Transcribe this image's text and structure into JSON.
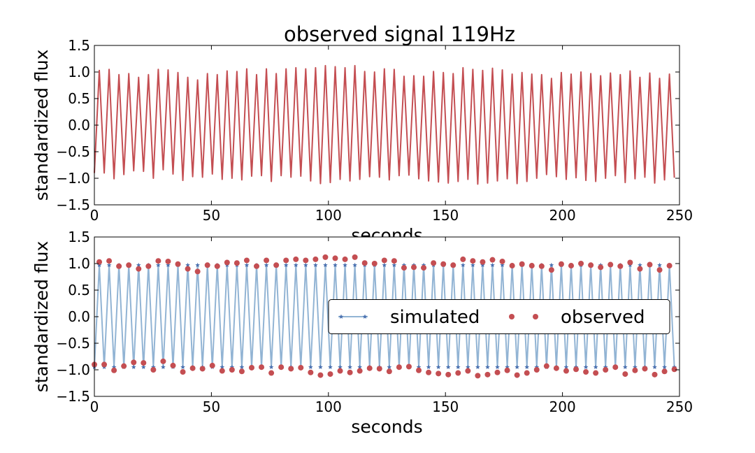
{
  "chart_data": [
    {
      "type": "line",
      "title": "observed signal 119Hz",
      "xlabel": "seconds",
      "ylabel": "standardized flux",
      "xlim": [
        0,
        250
      ],
      "xticks": [
        0,
        50,
        100,
        150,
        200,
        250
      ],
      "ylim": [
        -1.5,
        1.5
      ],
      "yticks": [
        {
          "value": -1.5,
          "label": "−1.5"
        },
        {
          "value": -1.0,
          "label": "−1.0"
        },
        {
          "value": -0.5,
          "label": "−0.5"
        },
        {
          "value": 0,
          "label": "0.0"
        },
        0.5,
        {
          "value": 1.0,
          "label": "1.0"
        },
        1.5
      ],
      "x": [
        0,
        2.1,
        4.2,
        6.3,
        8.4,
        10.5,
        12.6,
        14.7,
        16.8,
        18.9,
        21,
        23.1,
        25.2,
        27.3,
        29.4,
        31.5,
        33.6,
        35.7,
        37.8,
        39.9,
        42,
        44.1,
        46.2,
        48.3,
        50.4,
        52.5,
        54.6,
        56.7,
        58.8,
        60.9,
        63,
        65.1,
        67.2,
        69.3,
        71.4,
        73.5,
        75.6,
        77.7,
        79.8,
        81.9,
        84,
        86.1,
        88.2,
        90.3,
        92.4,
        94.5,
        96.6,
        98.7,
        100.8,
        102.9,
        105,
        107.1,
        109.2,
        111.3,
        113.4,
        115.5,
        117.6,
        119.7,
        121.8,
        123.9,
        126,
        128.1,
        130.2,
        132.3,
        134.4,
        136.5,
        138.6,
        140.7,
        142.8,
        144.9,
        147,
        149.1,
        151.2,
        153.3,
        155.4,
        157.5,
        159.6,
        161.7,
        163.8,
        165.9,
        168,
        170.1,
        172.2,
        174.3,
        176.4,
        178.5,
        180.6,
        182.7,
        184.8,
        186.9,
        189,
        191.1,
        193.2,
        195.3,
        197.4,
        199.5,
        201.6,
        203.7,
        205.8,
        207.9,
        210,
        212.1,
        214.2,
        216.3,
        218.4,
        220.5,
        222.6,
        224.7,
        226.8,
        228.9,
        231,
        233.1,
        235.2,
        237.3,
        239.4,
        241.5,
        243.6,
        245.7,
        247.8
      ],
      "series": [
        {
          "color": "#c44e52",
          "line": true,
          "marker": "none",
          "values": [
            -0.9,
            1.03,
            -0.9,
            1.05,
            -1.01,
            0.95,
            -0.93,
            0.97,
            -0.86,
            0.9,
            -0.87,
            0.95,
            -1.0,
            1.05,
            -0.84,
            1.04,
            -0.92,
            0.99,
            -1.04,
            0.9,
            -0.97,
            0.85,
            -0.98,
            0.97,
            -0.92,
            0.95,
            -1.02,
            1.02,
            -1.0,
            1.01,
            -1.03,
            1.06,
            -0.96,
            0.95,
            -0.95,
            1.06,
            -1.06,
            0.97,
            -0.95,
            1.06,
            -0.98,
            1.08,
            -0.96,
            1.06,
            -1.05,
            1.08,
            -1.1,
            1.12,
            -1.08,
            1.1,
            -1.02,
            1.08,
            -1.05,
            1.12,
            -1.02,
            1.01,
            -0.97,
            1.0,
            -0.98,
            1.06,
            -1.03,
            1.05,
            -0.95,
            0.92,
            -0.94,
            0.93,
            -1.01,
            0.92,
            -1.05,
            1.01,
            -1.07,
            0.99,
            -1.09,
            0.97,
            -1.06,
            1.08,
            -1.02,
            1.05,
            -1.11,
            1.03,
            -1.09,
            1.07,
            -1.05,
            1.04,
            -1.01,
            0.96,
            -1.1,
            0.99,
            -1.06,
            0.96,
            -1.0,
            0.95,
            -0.93,
            0.88,
            -0.97,
            0.99,
            -1.02,
            0.96,
            -0.99,
            1.0,
            -1.04,
            0.97,
            -1.06,
            0.93,
            -1.0,
            0.98,
            -0.95,
            0.95,
            -1.08,
            1.02,
            -1.01,
            0.9,
            -0.98,
            0.98,
            -1.09,
            0.88,
            -1.03,
            0.96,
            -0.99
          ]
        }
      ]
    },
    {
      "type": "line",
      "xlabel": "seconds",
      "ylabel": "standardized flux",
      "xlim": [
        0,
        250
      ],
      "xticks": [
        0,
        50,
        100,
        150,
        200,
        250
      ],
      "ylim": [
        -1.5,
        1.5
      ],
      "yticks": [
        {
          "value": -1.5,
          "label": "−1.5"
        },
        {
          "value": -1.0,
          "label": "−1.0"
        },
        {
          "value": -0.5,
          "label": "−0.5"
        },
        {
          "value": 0,
          "label": "0.0"
        },
        0.5,
        {
          "value": 1.0,
          "label": "1.0"
        },
        1.5
      ],
      "legend": "center right",
      "x": [
        0,
        2.1,
        4.2,
        6.3,
        8.4,
        10.5,
        12.6,
        14.7,
        16.8,
        18.9,
        21,
        23.1,
        25.2,
        27.3,
        29.4,
        31.5,
        33.6,
        35.7,
        37.8,
        39.9,
        42,
        44.1,
        46.2,
        48.3,
        50.4,
        52.5,
        54.6,
        56.7,
        58.8,
        60.9,
        63,
        65.1,
        67.2,
        69.3,
        71.4,
        73.5,
        75.6,
        77.7,
        79.8,
        81.9,
        84,
        86.1,
        88.2,
        90.3,
        92.4,
        94.5,
        96.6,
        98.7,
        100.8,
        102.9,
        105,
        107.1,
        109.2,
        111.3,
        113.4,
        115.5,
        117.6,
        119.7,
        121.8,
        123.9,
        126,
        128.1,
        130.2,
        132.3,
        134.4,
        136.5,
        138.6,
        140.7,
        142.8,
        144.9,
        147,
        149.1,
        151.2,
        153.3,
        155.4,
        157.5,
        159.6,
        161.7,
        163.8,
        165.9,
        168,
        170.1,
        172.2,
        174.3,
        176.4,
        178.5,
        180.6,
        182.7,
        184.8,
        186.9,
        189,
        191.1,
        193.2,
        195.3,
        197.4,
        199.5,
        201.6,
        203.7,
        205.8,
        207.9,
        210,
        212.1,
        214.2,
        216.3,
        218.4,
        220.5,
        222.6,
        224.7,
        226.8,
        228.9,
        231,
        233.1,
        235.2,
        237.3,
        239.4,
        241.5,
        243.6,
        245.7,
        247.8
      ],
      "series": [
        {
          "name": "simulated",
          "color": "#92b4d4",
          "marker_color": "#4c72b0",
          "line": true,
          "marker": "star",
          "values": [
            -0.95,
            0.97,
            -0.95,
            0.97,
            -0.95,
            0.97,
            -0.95,
            0.97,
            -0.95,
            0.97,
            -0.95,
            0.97,
            -0.95,
            0.97,
            -0.95,
            0.97,
            -0.95,
            0.97,
            -0.95,
            0.97,
            -0.95,
            0.97,
            -0.95,
            0.97,
            -0.95,
            0.97,
            -0.95,
            0.97,
            -0.95,
            0.97,
            -0.95,
            0.97,
            -0.95,
            0.97,
            -0.95,
            0.97,
            -0.95,
            0.97,
            -0.95,
            0.97,
            -0.95,
            0.97,
            -0.95,
            0.97,
            -0.95,
            0.97,
            -0.95,
            0.97,
            -0.95,
            0.97,
            -0.95,
            0.97,
            -0.95,
            0.97,
            -0.95,
            0.97,
            -0.95,
            0.97,
            -0.95,
            0.97,
            -0.95,
            0.97,
            -0.95,
            0.97,
            -0.95,
            0.97,
            -0.95,
            0.97,
            -0.95,
            0.97,
            -0.95,
            0.97,
            -0.95,
            0.97,
            -0.95,
            0.97,
            -0.95,
            0.97,
            -0.95,
            0.97,
            -0.95,
            0.97,
            -0.95,
            0.97,
            -0.95,
            0.97,
            -0.95,
            0.97,
            -0.95,
            0.97,
            -0.95,
            0.97,
            -0.95,
            0.97,
            -0.95,
            0.97,
            -0.95,
            0.97,
            -0.95,
            0.97,
            -0.95,
            0.97,
            -0.95,
            0.97,
            -0.95,
            0.97,
            -0.95,
            0.97,
            -0.95,
            0.97,
            -0.95,
            0.97,
            -0.95,
            0.97,
            -0.95,
            0.97,
            -0.95,
            0.97,
            -0.95
          ]
        },
        {
          "name": "observed",
          "color": "#c44e52",
          "line": false,
          "marker": "circle",
          "values": [
            -0.9,
            1.03,
            -0.9,
            1.05,
            -1.01,
            0.95,
            -0.93,
            0.97,
            -0.86,
            0.9,
            -0.87,
            0.95,
            -1.0,
            1.05,
            -0.84,
            1.04,
            -0.92,
            0.99,
            -1.04,
            0.9,
            -0.97,
            0.85,
            -0.98,
            0.97,
            -0.92,
            0.95,
            -1.02,
            1.02,
            -1.0,
            1.01,
            -1.03,
            1.06,
            -0.96,
            0.95,
            -0.95,
            1.06,
            -1.06,
            0.97,
            -0.95,
            1.06,
            -0.98,
            1.08,
            -0.96,
            1.06,
            -1.05,
            1.08,
            -1.1,
            1.12,
            -1.08,
            1.1,
            -1.02,
            1.08,
            -1.05,
            1.12,
            -1.02,
            1.01,
            -0.97,
            1.0,
            -0.98,
            1.06,
            -1.03,
            1.05,
            -0.95,
            0.92,
            -0.94,
            0.93,
            -1.01,
            0.92,
            -1.05,
            1.01,
            -1.07,
            0.99,
            -1.09,
            0.97,
            -1.06,
            1.08,
            -1.02,
            1.05,
            -1.11,
            1.03,
            -1.09,
            1.07,
            -1.05,
            1.04,
            -1.01,
            0.96,
            -1.1,
            0.99,
            -1.06,
            0.96,
            -1.0,
            0.95,
            -0.93,
            0.88,
            -0.97,
            0.99,
            -1.02,
            0.96,
            -0.99,
            1.0,
            -1.04,
            0.97,
            -1.06,
            0.93,
            -1.0,
            0.98,
            -0.95,
            0.95,
            -1.08,
            1.02,
            -1.01,
            0.9,
            -0.98,
            0.98,
            -1.09,
            0.88,
            -1.03,
            0.96,
            -0.99
          ]
        }
      ]
    }
  ]
}
